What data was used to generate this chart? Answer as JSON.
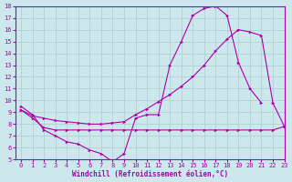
{
  "bg_color": "#cce8ed",
  "grid_color": "#aacccc",
  "line_color": "#aa00aa",
  "xlabel": "Windchill (Refroidissement éolien,°C)",
  "xlim": [
    -0.5,
    23
  ],
  "ylim": [
    5,
    18
  ],
  "xticks": [
    0,
    1,
    2,
    3,
    4,
    5,
    6,
    7,
    8,
    9,
    10,
    11,
    12,
    13,
    14,
    15,
    16,
    17,
    18,
    19,
    20,
    21,
    22,
    23
  ],
  "yticks": [
    5,
    6,
    7,
    8,
    9,
    10,
    11,
    12,
    13,
    14,
    15,
    16,
    17,
    18
  ],
  "x_arch": [
    0,
    1,
    2,
    3,
    4,
    5,
    6,
    7,
    8,
    9,
    10,
    11,
    12,
    13,
    14,
    15,
    16,
    17,
    18,
    19,
    20,
    21
  ],
  "y_arch": [
    9.5,
    8.8,
    7.5,
    7.0,
    6.5,
    6.3,
    5.8,
    5.5,
    4.8,
    5.5,
    8.5,
    8.8,
    8.8,
    13.0,
    15.0,
    17.2,
    17.8,
    18.0,
    17.2,
    13.2,
    11.0,
    9.8
  ],
  "x_diag": [
    0,
    1,
    2,
    3,
    4,
    5,
    6,
    7,
    8,
    9,
    10,
    11,
    12,
    13,
    14,
    15,
    16,
    17,
    18,
    19,
    20,
    21,
    22,
    23
  ],
  "y_diag": [
    9.2,
    8.7,
    8.5,
    8.3,
    8.2,
    8.1,
    8.0,
    8.0,
    8.1,
    8.2,
    8.8,
    9.3,
    9.9,
    10.5,
    11.2,
    12.0,
    13.0,
    14.2,
    15.2,
    16.0,
    15.8,
    15.5,
    9.8,
    7.8
  ],
  "x_flat": [
    0,
    1,
    2,
    3,
    4,
    5,
    6,
    7,
    8,
    9,
    10,
    11,
    12,
    13,
    14,
    15,
    16,
    17,
    18,
    19,
    20,
    21,
    22,
    23
  ],
  "y_flat": [
    9.2,
    8.5,
    7.7,
    7.5,
    7.5,
    7.5,
    7.5,
    7.5,
    7.5,
    7.5,
    7.5,
    7.5,
    7.5,
    7.5,
    7.5,
    7.5,
    7.5,
    7.5,
    7.5,
    7.5,
    7.5,
    7.5,
    7.5,
    7.8
  ],
  "tick_fontsize": 5,
  "xlabel_fontsize": 5.5,
  "line_width": 0.8,
  "marker_size": 2.5
}
